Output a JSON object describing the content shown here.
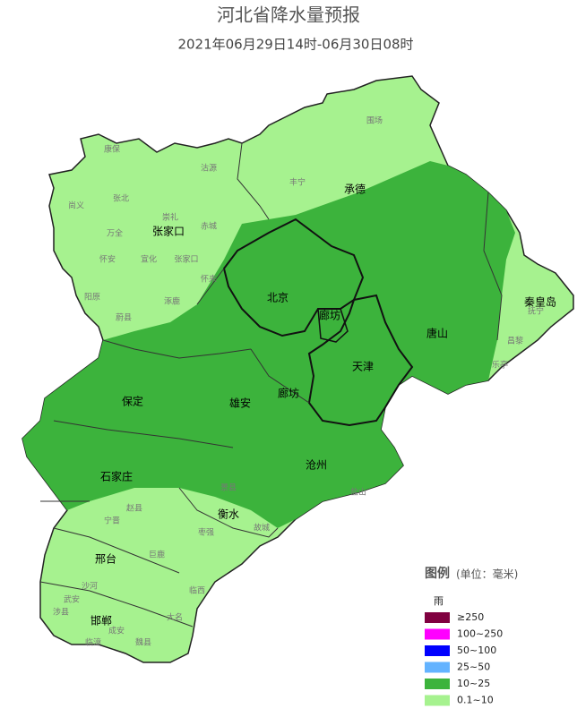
{
  "header": {
    "title": "河北省降水量预报",
    "subtitle": "2021年06月29日14时-06月30日08时"
  },
  "map": {
    "cities": [
      "张家口",
      "承德",
      "北京",
      "廊坊",
      "秦皇岛",
      "唐山",
      "天津",
      "保定",
      "雄安",
      "廊坊",
      "沧州",
      "石家庄",
      "衡水",
      "邢台",
      "邯郸"
    ],
    "counties": [
      "康保",
      "沽源",
      "丰宁",
      "围场",
      "尚义",
      "张北",
      "崇礼",
      "赤城",
      "万全",
      "怀安",
      "宣化",
      "张家口",
      "怀来",
      "阳原",
      "涿鹿",
      "蔚县",
      "抚宁",
      "昌黎",
      "乐亭",
      "赵县",
      "宁晋",
      "巨鹿",
      "临西",
      "成安",
      "临漳",
      "魏县",
      "大名",
      "涉县",
      "武安",
      "沙河",
      "故城",
      "景县",
      "枣强",
      "盐山"
    ]
  },
  "legend": {
    "title": "图例",
    "unit": "(单位：毫米)",
    "group": "雨",
    "items": [
      {
        "label": "≥250",
        "color": "#800040"
      },
      {
        "label": "100~250",
        "color": "#ff00ff"
      },
      {
        "label": "50~100",
        "color": "#0000ff"
      },
      {
        "label": "25~50",
        "color": "#63b3ff"
      },
      {
        "label": "10~25",
        "color": "#3cb33c"
      },
      {
        "label": "0.1~10",
        "color": "#a6f28f"
      }
    ]
  }
}
